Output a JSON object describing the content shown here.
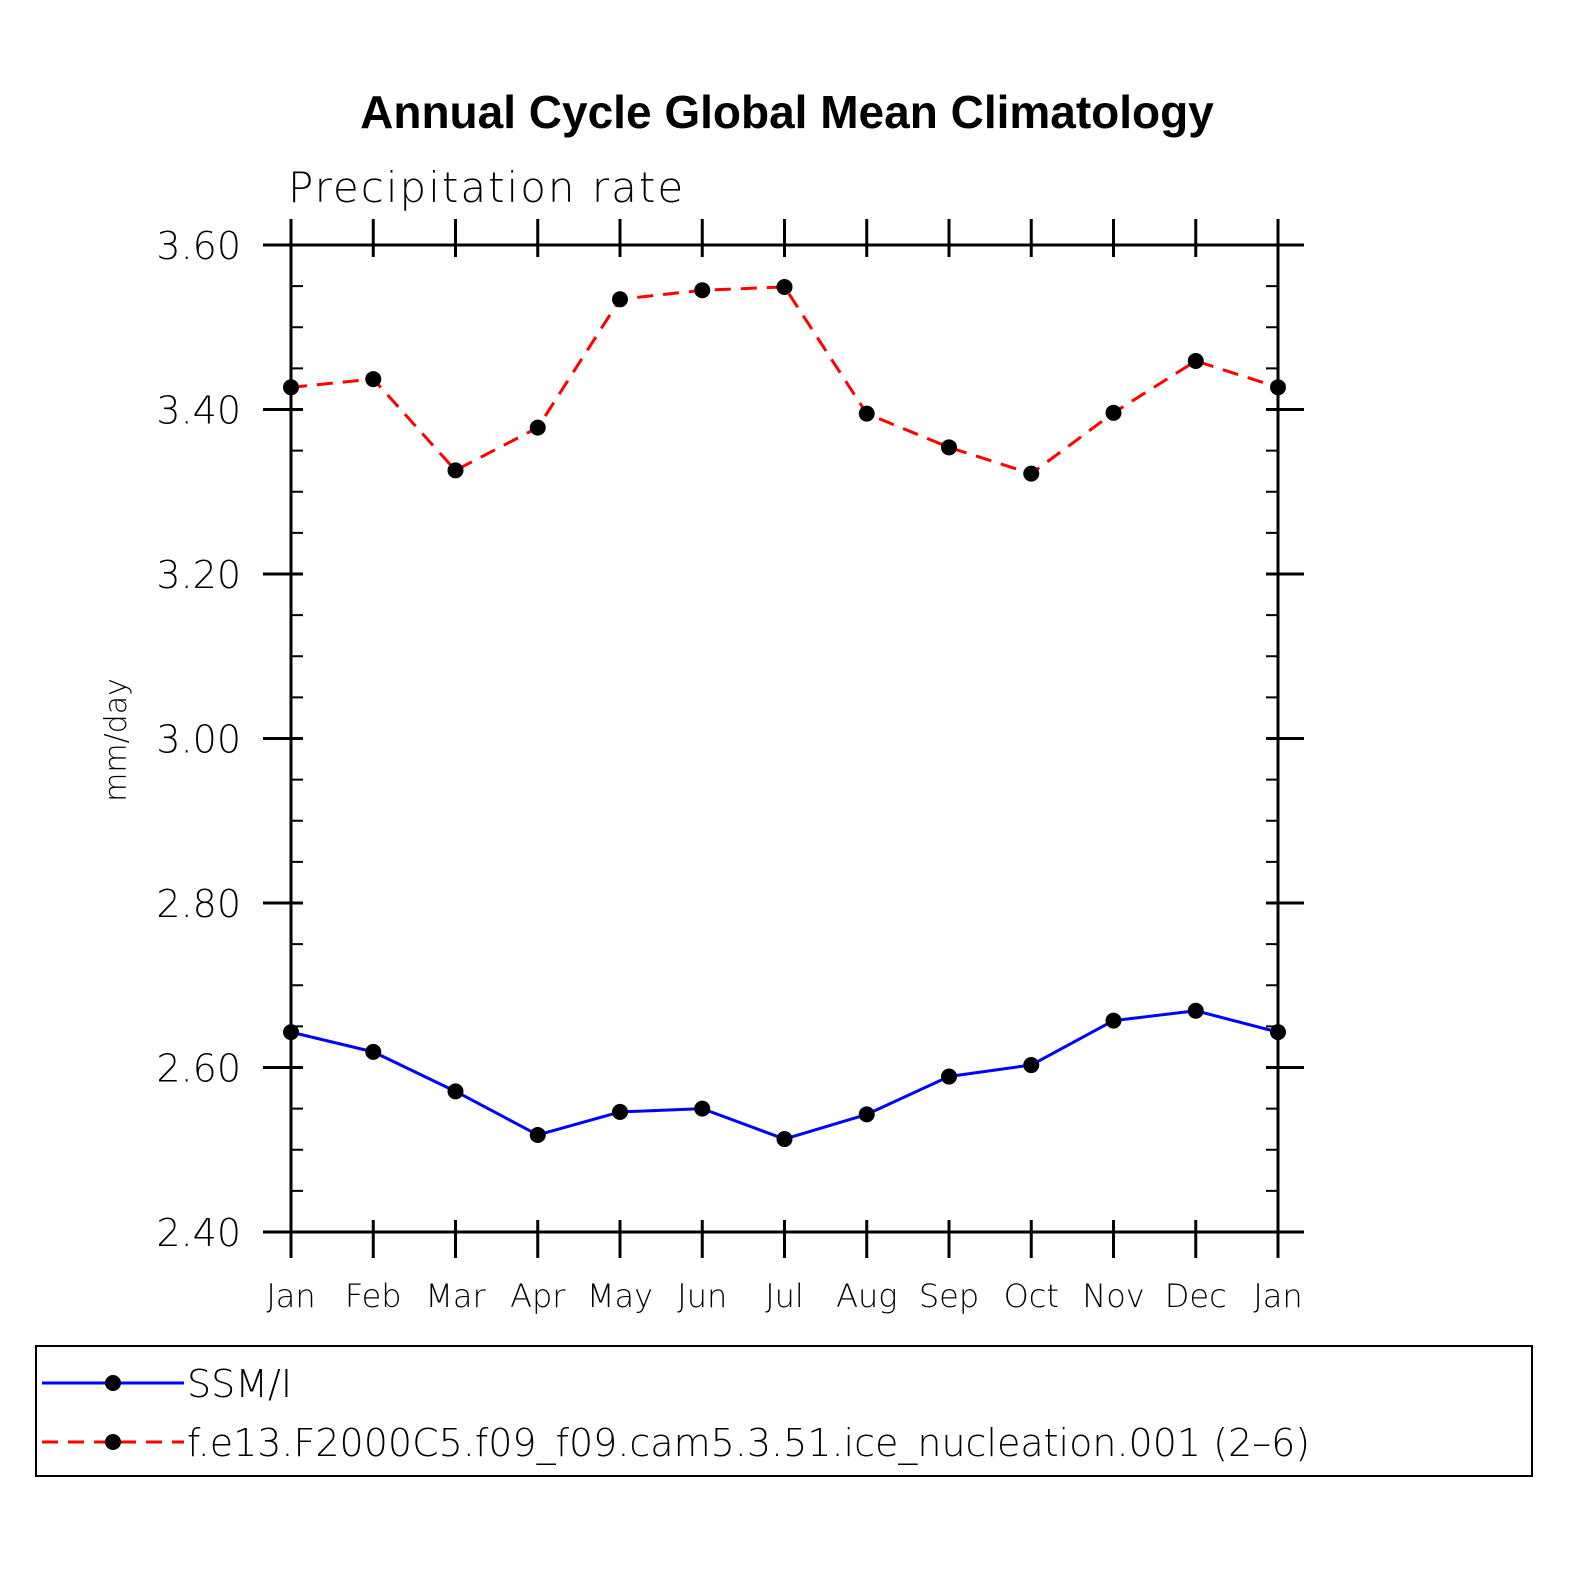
{
  "chart_data": {
    "type": "line",
    "title": "Annual Cycle Global Mean Climatology",
    "subtitle": "Precipitation rate",
    "xlabel": "",
    "ylabel": "mm/day",
    "categories": [
      "Jan",
      "Feb",
      "Mar",
      "Apr",
      "May",
      "Jun",
      "Jul",
      "Aug",
      "Sep",
      "Oct",
      "Nov",
      "Dec",
      "Jan"
    ],
    "ylim": [
      2.4,
      3.6
    ],
    "yticks": [
      "2.40",
      "2.60",
      "2.80",
      "3.00",
      "3.20",
      "3.40",
      "3.60"
    ],
    "ytick_values": [
      2.4,
      2.6,
      2.8,
      3.0,
      3.2,
      3.4,
      3.6
    ],
    "y_minor_step": 0.05,
    "grid": false,
    "legend_position": "bottom",
    "series": [
      {
        "name": "SSM/I",
        "color": "#0000ff",
        "dash": "solid",
        "values": [
          2.643,
          2.619,
          2.571,
          2.518,
          2.546,
          2.55,
          2.513,
          2.543,
          2.589,
          2.603,
          2.657,
          2.669,
          2.643
        ]
      },
      {
        "name": "f.e13.F2000C5.f09_f09.cam5.3.51.ice_nucleation.001 (2–6)",
        "color": "#ff0000",
        "dash": "dashed",
        "values": [
          3.427,
          3.437,
          3.326,
          3.378,
          3.534,
          3.545,
          3.549,
          3.395,
          3.354,
          3.322,
          3.396,
          3.459,
          3.427
        ]
      }
    ]
  }
}
